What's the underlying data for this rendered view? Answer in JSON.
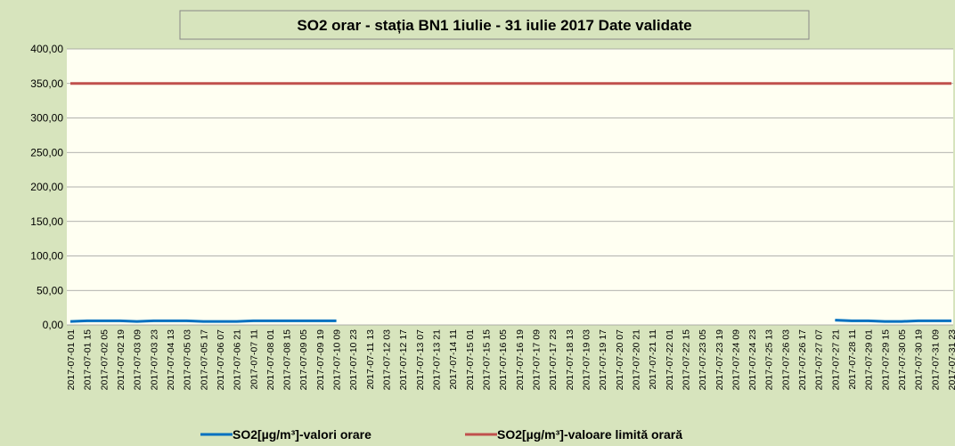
{
  "chart_data": {
    "type": "line",
    "title": "SO2  orar - stația BN1  1iulie - 31 iulie 2017 Date validate",
    "categories": [
      "2017-07-01 01",
      "2017-07-01 15",
      "2017-07-02 05",
      "2017-07-02 19",
      "2017-07-03 09",
      "2017-07-03 23",
      "2017-07-04 13",
      "2017-07-05 03",
      "2017-07-05 17",
      "2017-07-06 07",
      "2017-07-06 21",
      "2017-07-07 11",
      "2017-07-08 01",
      "2017-07-08 15",
      "2017-07-09 05",
      "2017-07-09 19",
      "2017-07-10 09",
      "2017-07-10 23",
      "2017-07-11 13",
      "2017-07-12 03",
      "2017-07-12 17",
      "2017-07-13 07",
      "2017-07-13 21",
      "2017-07-14 11",
      "2017-07-15 01",
      "2017-07-15 15",
      "2017-07-16 05",
      "2017-07-16 19",
      "2017-07-17 09",
      "2017-07-17 23",
      "2017-07-18 13",
      "2017-07-19 03",
      "2017-07-19 17",
      "2017-07-20 07",
      "2017-07-20 21",
      "2017-07-21 11",
      "2017-07-22 01",
      "2017-07-22 15",
      "2017-07-23 05",
      "2017-07-23 19",
      "2017-07-24 09",
      "2017-07-24 23",
      "2017-07-25 13",
      "2017-07-26 03",
      "2017-07-26 17",
      "2017-07-27 07",
      "2017-07-27 21",
      "2017-07-28 11",
      "2017-07-29 01",
      "2017-07-29 15",
      "2017-07-30 05",
      "2017-07-30 19",
      "2017-07-31 09",
      "2017-07-31 23"
    ],
    "series": [
      {
        "name": "SO2[µg/m³]-valori orare",
        "color": "#0070c0",
        "values": [
          5,
          6,
          6,
          6,
          5,
          6,
          6,
          6,
          5,
          5,
          5,
          6,
          6,
          6,
          6,
          6,
          6,
          null,
          null,
          null,
          null,
          null,
          null,
          null,
          null,
          null,
          null,
          null,
          null,
          null,
          null,
          null,
          null,
          null,
          null,
          null,
          null,
          null,
          null,
          null,
          null,
          null,
          null,
          null,
          null,
          null,
          7,
          6,
          6,
          5,
          5,
          6,
          6,
          6
        ]
      },
      {
        "name": "SO2[µg/m³]-valoare limită orară",
        "color": "#c0504d",
        "values": [
          350,
          350,
          350,
          350,
          350,
          350,
          350,
          350,
          350,
          350,
          350,
          350,
          350,
          350,
          350,
          350,
          350,
          350,
          350,
          350,
          350,
          350,
          350,
          350,
          350,
          350,
          350,
          350,
          350,
          350,
          350,
          350,
          350,
          350,
          350,
          350,
          350,
          350,
          350,
          350,
          350,
          350,
          350,
          350,
          350,
          350,
          350,
          350,
          350,
          350,
          350,
          350,
          350,
          350
        ]
      }
    ],
    "ylim": [
      0,
      400
    ],
    "yticks": [
      {
        "value": 0,
        "label": "0,00"
      },
      {
        "value": 50,
        "label": "50,00"
      },
      {
        "value": 100,
        "label": "100,00"
      },
      {
        "value": 150,
        "label": "150,00"
      },
      {
        "value": 200,
        "label": "200,00"
      },
      {
        "value": 250,
        "label": "250,00"
      },
      {
        "value": 300,
        "label": "300,00"
      },
      {
        "value": 350,
        "label": "350,00"
      },
      {
        "value": 400,
        "label": "400,00"
      }
    ],
    "grid": true,
    "legend": "bottom"
  }
}
